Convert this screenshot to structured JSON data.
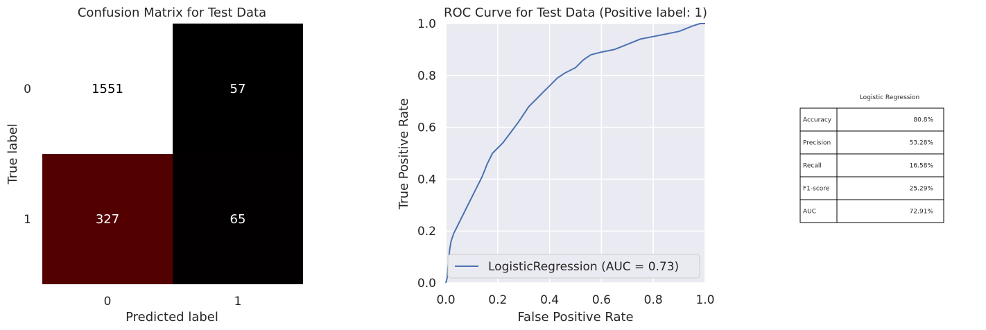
{
  "chart_data": [
    {
      "type": "heatmap",
      "title": "Confusion Matrix for Test Data",
      "xlabel": "Predicted label",
      "ylabel": "True label",
      "x_categories": [
        "0",
        "1"
      ],
      "y_categories": [
        "0",
        "1"
      ],
      "values": [
        [
          1551,
          57
        ],
        [
          327,
          65
        ]
      ],
      "colors": {
        "high": "#ffffff",
        "mid": "#5c0000",
        "low": "#000000"
      },
      "grid": false
    },
    {
      "type": "line",
      "title": "ROC Curve for Test Data (Positive label: 1)",
      "xlabel": "False Positive Rate",
      "ylabel": "True Positive Rate",
      "xlim": [
        0,
        1
      ],
      "ylim": [
        0,
        1
      ],
      "xticks": [
        "0.0",
        "0.2",
        "0.4",
        "0.6",
        "0.8",
        "1.0"
      ],
      "yticks": [
        "0.0",
        "0.2",
        "0.4",
        "0.6",
        "0.8",
        "1.0"
      ],
      "grid": true,
      "legend_position": "lower-right",
      "series": [
        {
          "name": "LogisticRegression (AUC = 0.73)",
          "color": "#4c72b0",
          "x": [
            0,
            0.005,
            0.01,
            0.015,
            0.02,
            0.03,
            0.04,
            0.05,
            0.06,
            0.07,
            0.08,
            0.1,
            0.12,
            0.14,
            0.16,
            0.18,
            0.2,
            0.22,
            0.25,
            0.28,
            0.3,
            0.32,
            0.35,
            0.38,
            0.4,
            0.43,
            0.46,
            0.5,
            0.53,
            0.56,
            0.6,
            0.65,
            0.7,
            0.75,
            0.8,
            0.85,
            0.9,
            0.95,
            0.98,
            1.0
          ],
          "y": [
            0,
            0.02,
            0.08,
            0.13,
            0.16,
            0.19,
            0.21,
            0.23,
            0.25,
            0.27,
            0.29,
            0.33,
            0.37,
            0.41,
            0.46,
            0.5,
            0.52,
            0.54,
            0.58,
            0.62,
            0.65,
            0.68,
            0.71,
            0.74,
            0.76,
            0.79,
            0.81,
            0.83,
            0.86,
            0.88,
            0.89,
            0.9,
            0.92,
            0.94,
            0.95,
            0.96,
            0.97,
            0.99,
            1.0,
            1.0
          ]
        }
      ]
    },
    {
      "type": "table",
      "title": "Logistic Regression",
      "rows": [
        [
          "Accuracy",
          "80.8%"
        ],
        [
          "Precision",
          "53.28%"
        ],
        [
          "Recall",
          "16.58%"
        ],
        [
          "F1-score",
          "25.29%"
        ],
        [
          "AUC",
          "72.91%"
        ]
      ]
    }
  ]
}
